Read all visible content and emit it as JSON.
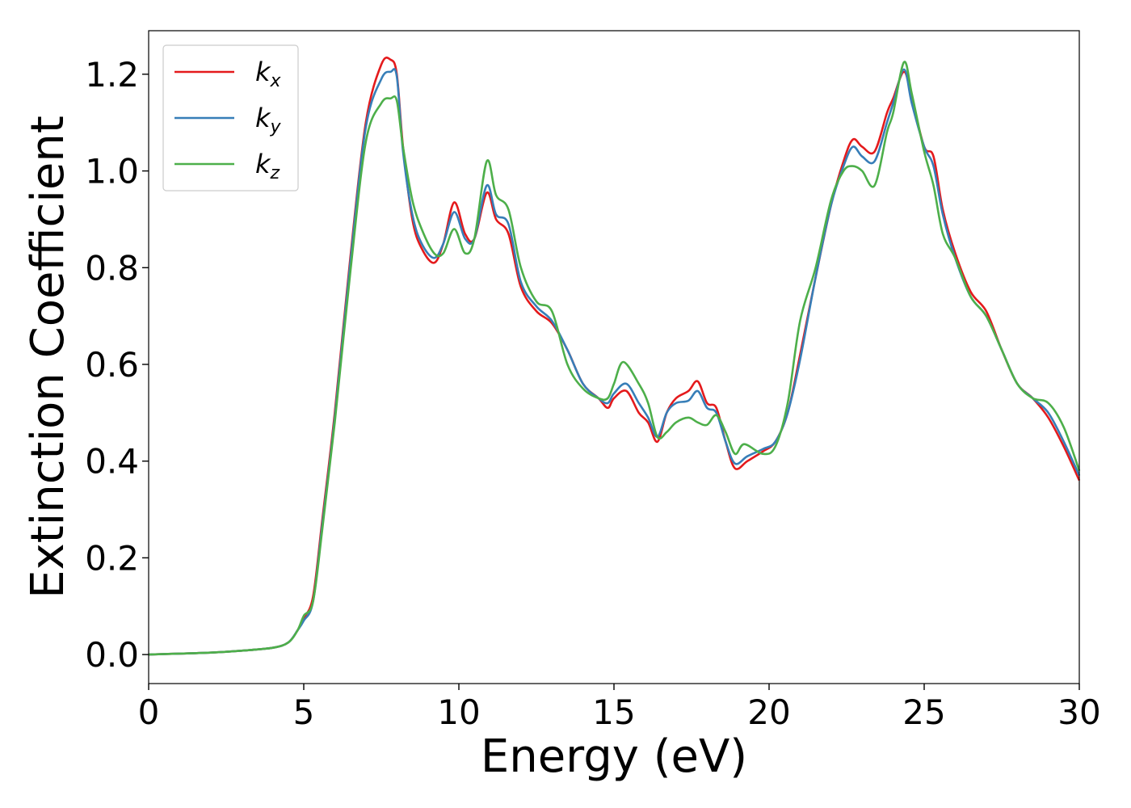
{
  "chart_data": {
    "type": "line",
    "xlabel": "Energy (eV)",
    "ylabel": "Extinction Coefficient",
    "xlim": [
      0,
      30
    ],
    "ylim": [
      -0.06,
      1.29
    ],
    "xticks": [
      0,
      5,
      10,
      15,
      20,
      25,
      30
    ],
    "xtick_labels": [
      "0",
      "5",
      "10",
      "15",
      "20",
      "25",
      "30"
    ],
    "yticks": [
      0.0,
      0.2,
      0.4,
      0.6,
      0.8,
      1.0,
      1.2
    ],
    "ytick_labels": [
      "0.0",
      "0.2",
      "0.4",
      "0.6",
      "0.8",
      "1.0",
      "1.2"
    ],
    "grid": false,
    "legend_position": "top-left",
    "series": [
      {
        "name": "k",
        "subscript": "x",
        "color": "#e41a1c",
        "x": [
          0,
          1,
          2,
          3,
          4,
          4.5,
          4.8,
          5.0,
          5.3,
          5.6,
          6.0,
          6.5,
          7.0,
          7.5,
          7.8,
          8.0,
          8.2,
          8.5,
          8.8,
          9.2,
          9.5,
          9.85,
          10.2,
          10.5,
          10.9,
          11.2,
          11.6,
          12.0,
          12.5,
          13.0,
          13.5,
          14.0,
          14.5,
          14.8,
          15.0,
          15.4,
          15.8,
          16.1,
          16.4,
          16.7,
          17.0,
          17.4,
          17.7,
          18.0,
          18.3,
          18.6,
          18.9,
          19.3,
          19.8,
          20.2,
          20.6,
          21.0,
          21.5,
          22.0,
          22.4,
          22.7,
          23.0,
          23.4,
          23.8,
          24.0,
          24.35,
          24.6,
          25.0,
          25.3,
          25.6,
          26.0,
          26.5,
          27.0,
          27.5,
          28.0,
          28.5,
          29.0,
          29.5,
          30.0
        ],
        "values": [
          0.0,
          0.002,
          0.004,
          0.008,
          0.014,
          0.025,
          0.05,
          0.075,
          0.12,
          0.28,
          0.5,
          0.82,
          1.1,
          1.22,
          1.23,
          1.2,
          1.05,
          0.9,
          0.84,
          0.81,
          0.85,
          0.935,
          0.87,
          0.86,
          0.955,
          0.9,
          0.87,
          0.76,
          0.71,
          0.685,
          0.63,
          0.56,
          0.53,
          0.51,
          0.53,
          0.545,
          0.5,
          0.48,
          0.44,
          0.5,
          0.53,
          0.545,
          0.565,
          0.52,
          0.51,
          0.44,
          0.385,
          0.4,
          0.42,
          0.44,
          0.5,
          0.62,
          0.78,
          0.93,
          1.02,
          1.065,
          1.05,
          1.04,
          1.12,
          1.15,
          1.205,
          1.15,
          1.05,
          1.03,
          0.92,
          0.83,
          0.75,
          0.71,
          0.63,
          0.56,
          0.53,
          0.49,
          0.43,
          0.36
        ]
      },
      {
        "name": "k",
        "subscript": "y",
        "color": "#377eb8",
        "x": [
          0,
          1,
          2,
          3,
          4,
          4.5,
          4.8,
          5.0,
          5.3,
          5.6,
          6.0,
          6.5,
          7.0,
          7.5,
          7.8,
          8.0,
          8.2,
          8.5,
          8.8,
          9.2,
          9.5,
          9.85,
          10.2,
          10.5,
          10.9,
          11.2,
          11.6,
          12.0,
          12.5,
          13.0,
          13.5,
          14.0,
          14.5,
          14.8,
          15.0,
          15.4,
          15.8,
          16.1,
          16.4,
          16.7,
          17.0,
          17.4,
          17.7,
          18.0,
          18.3,
          18.6,
          18.9,
          19.3,
          19.8,
          20.2,
          20.6,
          21.0,
          21.5,
          22.0,
          22.4,
          22.7,
          23.0,
          23.4,
          23.8,
          24.0,
          24.35,
          24.6,
          25.0,
          25.3,
          25.6,
          26.0,
          26.5,
          27.0,
          27.5,
          28.0,
          28.5,
          29.0,
          29.5,
          30.0
        ],
        "values": [
          0.0,
          0.002,
          0.004,
          0.008,
          0.014,
          0.025,
          0.05,
          0.07,
          0.11,
          0.27,
          0.49,
          0.81,
          1.09,
          1.19,
          1.205,
          1.195,
          1.04,
          0.91,
          0.85,
          0.82,
          0.85,
          0.915,
          0.86,
          0.86,
          0.97,
          0.91,
          0.89,
          0.77,
          0.72,
          0.69,
          0.63,
          0.56,
          0.53,
          0.52,
          0.54,
          0.56,
          0.52,
          0.49,
          0.45,
          0.5,
          0.52,
          0.525,
          0.545,
          0.51,
          0.5,
          0.44,
          0.395,
          0.41,
          0.425,
          0.44,
          0.5,
          0.61,
          0.78,
          0.93,
          1.01,
          1.05,
          1.03,
          1.02,
          1.1,
          1.14,
          1.21,
          1.14,
          1.05,
          1.01,
          0.91,
          0.82,
          0.74,
          0.7,
          0.63,
          0.56,
          0.53,
          0.5,
          0.44,
          0.37
        ]
      },
      {
        "name": "k",
        "subscript": "z",
        "color": "#4daf4a",
        "x": [
          0,
          1,
          2,
          3,
          4,
          4.5,
          4.8,
          5.0,
          5.3,
          5.6,
          6.0,
          6.5,
          7.0,
          7.5,
          7.8,
          8.0,
          8.2,
          8.5,
          8.8,
          9.2,
          9.5,
          9.85,
          10.2,
          10.5,
          10.9,
          11.2,
          11.6,
          12.0,
          12.5,
          13.0,
          13.5,
          14.0,
          14.5,
          14.8,
          15.0,
          15.3,
          15.8,
          16.1,
          16.4,
          16.7,
          17.0,
          17.4,
          17.7,
          18.0,
          18.3,
          18.6,
          18.9,
          19.2,
          19.8,
          20.2,
          20.6,
          21.0,
          21.5,
          22.0,
          22.4,
          22.7,
          23.0,
          23.4,
          23.8,
          24.0,
          24.35,
          24.6,
          25.0,
          25.3,
          25.6,
          26.0,
          26.5,
          27.0,
          27.5,
          28.0,
          28.5,
          29.0,
          29.5,
          30.0
        ],
        "values": [
          0.0,
          0.002,
          0.004,
          0.008,
          0.014,
          0.025,
          0.05,
          0.08,
          0.11,
          0.26,
          0.48,
          0.79,
          1.06,
          1.14,
          1.15,
          1.145,
          1.05,
          0.94,
          0.88,
          0.83,
          0.83,
          0.88,
          0.83,
          0.86,
          1.02,
          0.95,
          0.92,
          0.8,
          0.73,
          0.71,
          0.6,
          0.55,
          0.53,
          0.53,
          0.56,
          0.605,
          0.56,
          0.52,
          0.45,
          0.46,
          0.48,
          0.49,
          0.48,
          0.475,
          0.495,
          0.46,
          0.415,
          0.435,
          0.415,
          0.43,
          0.52,
          0.69,
          0.8,
          0.94,
          1.0,
          1.01,
          1.0,
          0.97,
          1.08,
          1.12,
          1.225,
          1.16,
          1.04,
          0.97,
          0.87,
          0.82,
          0.74,
          0.7,
          0.63,
          0.56,
          0.53,
          0.52,
          0.47,
          0.38
        ]
      }
    ]
  }
}
